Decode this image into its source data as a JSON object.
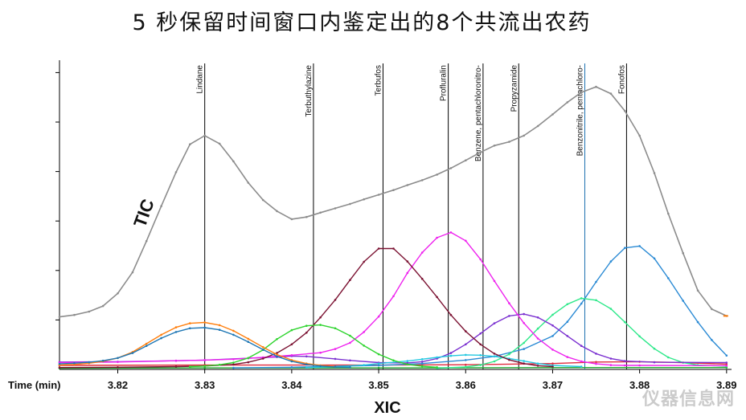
{
  "page": {
    "title": "5 秒保留时间窗口内鉴定出的8个共流出农药",
    "watermark": "仪器信息网"
  },
  "chart_data": {
    "type": "line",
    "title": "5 秒保留时间窗口内鉴定出的8个共流出农药",
    "xlabel": "Time (min)",
    "bottom_label": "XIC",
    "tic_label": "TIC",
    "xlim": [
      3.8133,
      3.8902
    ],
    "ylim": [
      0,
      100
    ],
    "grid": false,
    "x_ticks": [
      3.82,
      3.83,
      3.84,
      3.85,
      3.86,
      3.87,
      3.88,
      3.89
    ],
    "x_tick_labels": [
      "3.82",
      "3.83",
      "3.84",
      "3.85",
      "3.86",
      "3.87",
      "3.88",
      "3.89"
    ],
    "y_ticks": [
      16,
      32,
      48,
      64,
      80,
      96
    ],
    "markers": [
      {
        "name": "Lindane",
        "x": 3.83
      },
      {
        "name": "Terbuthylazine",
        "x": 3.8425
      },
      {
        "name": "Terbufos",
        "x": 3.8505
      },
      {
        "name": "Profluralin",
        "x": 3.858
      },
      {
        "name": "Benzene, pentachloronitro-",
        "x": 3.862
      },
      {
        "name": "Propyzamide",
        "x": 3.8661
      },
      {
        "name": "Benzonitrile, pentachloro-",
        "x": 3.8737
      },
      {
        "name": "Fonofos",
        "x": 3.8785
      }
    ],
    "series": [
      {
        "color": "#8c8c8c",
        "type": "tic",
        "points": [
          [
            3.8133,
            17
          ],
          [
            3.815,
            17.6
          ],
          [
            3.8167,
            18.7
          ],
          [
            3.8183,
            20.5
          ],
          [
            3.82,
            24.6
          ],
          [
            3.8217,
            31.4
          ],
          [
            3.8233,
            41.5
          ],
          [
            3.825,
            52.8
          ],
          [
            3.8267,
            63.8
          ],
          [
            3.8283,
            72.8
          ],
          [
            3.83,
            75.6
          ],
          [
            3.8317,
            73
          ],
          [
            3.8333,
            67.3
          ],
          [
            3.835,
            60.4
          ],
          [
            3.8367,
            54.8
          ],
          [
            3.8383,
            51.2
          ],
          [
            3.84,
            48.6
          ],
          [
            3.8417,
            49.3
          ],
          [
            3.8433,
            50.7
          ],
          [
            3.845,
            52.1
          ],
          [
            3.8467,
            53.5
          ],
          [
            3.8483,
            55
          ],
          [
            3.85,
            56.5
          ],
          [
            3.8517,
            58
          ],
          [
            3.8533,
            59.6
          ],
          [
            3.855,
            61.2
          ],
          [
            3.8567,
            63
          ],
          [
            3.8583,
            65.1
          ],
          [
            3.86,
            67.6
          ],
          [
            3.8617,
            70.2
          ],
          [
            3.8633,
            72.4
          ],
          [
            3.865,
            73.6
          ],
          [
            3.8667,
            75.6
          ],
          [
            3.8683,
            78.7
          ],
          [
            3.87,
            82.5
          ],
          [
            3.8717,
            86.4
          ],
          [
            3.8733,
            89.6
          ],
          [
            3.875,
            91.4
          ],
          [
            3.8767,
            89.2
          ],
          [
            3.8783,
            83.6
          ],
          [
            3.88,
            75.6
          ],
          [
            3.8817,
            63.5
          ],
          [
            3.8833,
            50.4
          ],
          [
            3.885,
            37.6
          ],
          [
            3.8867,
            25.5
          ],
          [
            3.8883,
            19.5
          ],
          [
            3.89,
            17.3
          ]
        ]
      },
      {
        "color": "#1f77b4",
        "name": "Lindane",
        "points": [
          [
            3.8133,
            1.8
          ],
          [
            3.815,
            2
          ],
          [
            3.8167,
            2.3
          ],
          [
            3.8183,
            2.8
          ],
          [
            3.82,
            3.7
          ],
          [
            3.8217,
            5.3
          ],
          [
            3.8233,
            7.6
          ],
          [
            3.825,
            10.1
          ],
          [
            3.8267,
            12.1
          ],
          [
            3.8283,
            13.3
          ],
          [
            3.83,
            13.5
          ],
          [
            3.8317,
            12.8
          ],
          [
            3.8333,
            11.2
          ],
          [
            3.835,
            8.9
          ],
          [
            3.8367,
            6.4
          ],
          [
            3.8383,
            4.2
          ],
          [
            3.84,
            2.6
          ],
          [
            3.8417,
            1.6
          ],
          [
            3.8433,
            1.1
          ],
          [
            3.845,
            0.8
          ],
          [
            3.8467,
            0.7
          ]
        ]
      },
      {
        "color": "#ff7f0e",
        "name": "Lindane",
        "points": [
          [
            3.8133,
            1.4
          ],
          [
            3.815,
            1.6
          ],
          [
            3.8167,
            2
          ],
          [
            3.8183,
            2.6
          ],
          [
            3.82,
            3.7
          ],
          [
            3.8217,
            5.6
          ],
          [
            3.8233,
            8.3
          ],
          [
            3.825,
            11.2
          ],
          [
            3.8267,
            13.6
          ],
          [
            3.8283,
            14.9
          ],
          [
            3.83,
            15.2
          ],
          [
            3.8317,
            14.3
          ],
          [
            3.8333,
            12.5
          ],
          [
            3.835,
            9.9
          ],
          [
            3.8367,
            7.2
          ],
          [
            3.8383,
            4.8
          ],
          [
            3.84,
            3
          ],
          [
            3.8417,
            1.9
          ],
          [
            3.8433,
            1.3
          ],
          [
            3.845,
            0.9
          ]
        ]
      },
      {
        "color": "#2ed42e",
        "name": "Terbuthylazine",
        "points": [
          [
            3.8283,
            0.9
          ],
          [
            3.83,
            1.1
          ],
          [
            3.8317,
            1.5
          ],
          [
            3.8333,
            2.2
          ],
          [
            3.835,
            3.7
          ],
          [
            3.8367,
            6.3
          ],
          [
            3.8383,
            9.8
          ],
          [
            3.84,
            12.7
          ],
          [
            3.8417,
            14.1
          ],
          [
            3.8433,
            14.4
          ],
          [
            3.845,
            13.3
          ],
          [
            3.8467,
            10.9
          ],
          [
            3.8483,
            7.7
          ],
          [
            3.85,
            4.9
          ],
          [
            3.8517,
            2.9
          ],
          [
            3.8533,
            1.6
          ],
          [
            3.855,
            1
          ],
          [
            3.8567,
            0.7
          ]
        ]
      },
      {
        "color": "#7b1232",
        "name": "Terbufos",
        "points": [
          [
            3.8133,
            0.6
          ],
          [
            3.82,
            0.7
          ],
          [
            3.8267,
            0.9
          ],
          [
            3.83,
            1.1
          ],
          [
            3.8333,
            1.6
          ],
          [
            3.835,
            2.3
          ],
          [
            3.8367,
            3.5
          ],
          [
            3.8383,
            5.3
          ],
          [
            3.84,
            8.1
          ],
          [
            3.8417,
            11.9
          ],
          [
            3.8433,
            16.8
          ],
          [
            3.845,
            22.5
          ],
          [
            3.8467,
            28.9
          ],
          [
            3.8483,
            34.8
          ],
          [
            3.85,
            39.1
          ],
          [
            3.8517,
            39.1
          ],
          [
            3.8533,
            34.9
          ],
          [
            3.855,
            29.3
          ],
          [
            3.8567,
            23.4
          ],
          [
            3.8583,
            17.6
          ],
          [
            3.86,
            12.3
          ],
          [
            3.8617,
            8.1
          ],
          [
            3.8633,
            5.1
          ],
          [
            3.865,
            3.1
          ],
          [
            3.8667,
            1.9
          ],
          [
            3.8683,
            1.2
          ],
          [
            3.87,
            0.9
          ]
        ]
      },
      {
        "color": "#ee22ee",
        "name": "Profluralin",
        "points": [
          [
            3.8133,
            2.2
          ],
          [
            3.82,
            2.4
          ],
          [
            3.8267,
            2.8
          ],
          [
            3.83,
            3
          ],
          [
            3.8333,
            3.3
          ],
          [
            3.8367,
            3.9
          ],
          [
            3.84,
            4.6
          ],
          [
            3.8433,
            5.4
          ],
          [
            3.845,
            6.6
          ],
          [
            3.8467,
            8.6
          ],
          [
            3.8483,
            12.1
          ],
          [
            3.85,
            17.1
          ],
          [
            3.8517,
            23.7
          ],
          [
            3.8533,
            31.2
          ],
          [
            3.855,
            37.8
          ],
          [
            3.8567,
            42.6
          ],
          [
            3.8583,
            44.3
          ],
          [
            3.86,
            41.6
          ],
          [
            3.8617,
            35.6
          ],
          [
            3.8633,
            28.6
          ],
          [
            3.865,
            21.4
          ],
          [
            3.8667,
            15
          ],
          [
            3.8683,
            10
          ],
          [
            3.87,
            6.4
          ],
          [
            3.8717,
            4
          ],
          [
            3.8733,
            2.6
          ],
          [
            3.875,
            1.8
          ],
          [
            3.8767,
            1.4
          ],
          [
            3.8783,
            1.3
          ],
          [
            3.88,
            1.3
          ],
          [
            3.89,
            1.2
          ]
        ]
      },
      {
        "color": "#23c8e0",
        "name": "Benzene, pentachloronitro-",
        "points": [
          [
            3.8417,
            0.6
          ],
          [
            3.845,
            0.9
          ],
          [
            3.8483,
            1.4
          ],
          [
            3.85,
            1.9
          ],
          [
            3.8533,
            2.7
          ],
          [
            3.855,
            3.3
          ],
          [
            3.8567,
            3.9
          ],
          [
            3.8583,
            4.4
          ],
          [
            3.86,
            4.7
          ],
          [
            3.8617,
            4.6
          ],
          [
            3.8633,
            4.2
          ],
          [
            3.865,
            3.5
          ],
          [
            3.8667,
            2.7
          ],
          [
            3.8683,
            1.9
          ],
          [
            3.87,
            1.3
          ],
          [
            3.8733,
            0.9
          ]
        ]
      },
      {
        "color": "#7a2fd0",
        "name": "Propyzamide",
        "points": [
          [
            3.8133,
            2.4
          ],
          [
            3.82,
            2.5
          ],
          [
            3.8267,
            2.8
          ],
          [
            3.83,
            3
          ],
          [
            3.835,
            3.6
          ],
          [
            3.8383,
            4
          ],
          [
            3.84,
            4.3
          ],
          [
            3.8417,
            4.2
          ],
          [
            3.845,
            3.4
          ],
          [
            3.8467,
            2.9
          ],
          [
            3.85,
            2.2
          ],
          [
            3.8533,
            2.1
          ],
          [
            3.855,
            2.5
          ],
          [
            3.8567,
            3.5
          ],
          [
            3.8583,
            5.3
          ],
          [
            3.86,
            8.1
          ],
          [
            3.8617,
            11.6
          ],
          [
            3.8633,
            14.9
          ],
          [
            3.865,
            17.3
          ],
          [
            3.8667,
            17.9
          ],
          [
            3.8683,
            16.8
          ],
          [
            3.87,
            14.2
          ],
          [
            3.8717,
            10.8
          ],
          [
            3.8733,
            7.6
          ],
          [
            3.875,
            5.1
          ],
          [
            3.8767,
            3.5
          ],
          [
            3.8783,
            2.7
          ],
          [
            3.8817,
            2.3
          ],
          [
            3.89,
            2.2
          ]
        ]
      },
      {
        "color": "#2ee88a",
        "name": "Benzonitrile, pentachloro-",
        "points": [
          [
            3.8567,
            0.4
          ],
          [
            3.86,
            0.8
          ],
          [
            3.8617,
            1.4
          ],
          [
            3.8633,
            2.6
          ],
          [
            3.865,
            4.9
          ],
          [
            3.8667,
            8.6
          ],
          [
            3.8683,
            13.2
          ],
          [
            3.87,
            17.7
          ],
          [
            3.8717,
            21.1
          ],
          [
            3.8733,
            23
          ],
          [
            3.875,
            22.4
          ],
          [
            3.8767,
            19.6
          ],
          [
            3.8783,
            15.3
          ],
          [
            3.88,
            10.7
          ],
          [
            3.8817,
            6.7
          ],
          [
            3.8833,
            3.9
          ],
          [
            3.885,
            2.2
          ],
          [
            3.8867,
            1.4
          ],
          [
            3.89,
            1
          ]
        ]
      },
      {
        "color": "#2a8ad4",
        "name": "Fonofos",
        "points": [
          [
            3.8333,
            0.5
          ],
          [
            3.84,
            0.7
          ],
          [
            3.845,
            1
          ],
          [
            3.85,
            1.3
          ],
          [
            3.855,
            1.9
          ],
          [
            3.86,
            3
          ],
          [
            3.8633,
            4.2
          ],
          [
            3.8667,
            6.6
          ],
          [
            3.87,
            10.8
          ],
          [
            3.8717,
            15.4
          ],
          [
            3.8733,
            21.3
          ],
          [
            3.875,
            28.3
          ],
          [
            3.8767,
            34.9
          ],
          [
            3.8783,
            39.3
          ],
          [
            3.88,
            39.9
          ],
          [
            3.8817,
            35.9
          ],
          [
            3.8833,
            29.5
          ],
          [
            3.885,
            22.2
          ],
          [
            3.8867,
            15.3
          ],
          [
            3.8883,
            9.5
          ],
          [
            3.89,
            4.5
          ]
        ]
      },
      {
        "color": "#e0293c",
        "name": "",
        "points": [
          [
            3.8133,
            1.3
          ],
          [
            3.83,
            1.4
          ],
          [
            3.85,
            1.4
          ],
          [
            3.86,
            1.5
          ],
          [
            3.87,
            1.9
          ],
          [
            3.875,
            2.4
          ],
          [
            3.88,
            2.5
          ],
          [
            3.885,
            2.2
          ],
          [
            3.89,
            1.7
          ]
        ]
      },
      {
        "color": "#22aa33",
        "name": "",
        "points": [
          [
            3.8133,
            0.4
          ],
          [
            3.83,
            0.5
          ],
          [
            3.85,
            0.5
          ],
          [
            3.87,
            0.6
          ],
          [
            3.89,
            0.6
          ]
        ]
      }
    ]
  }
}
